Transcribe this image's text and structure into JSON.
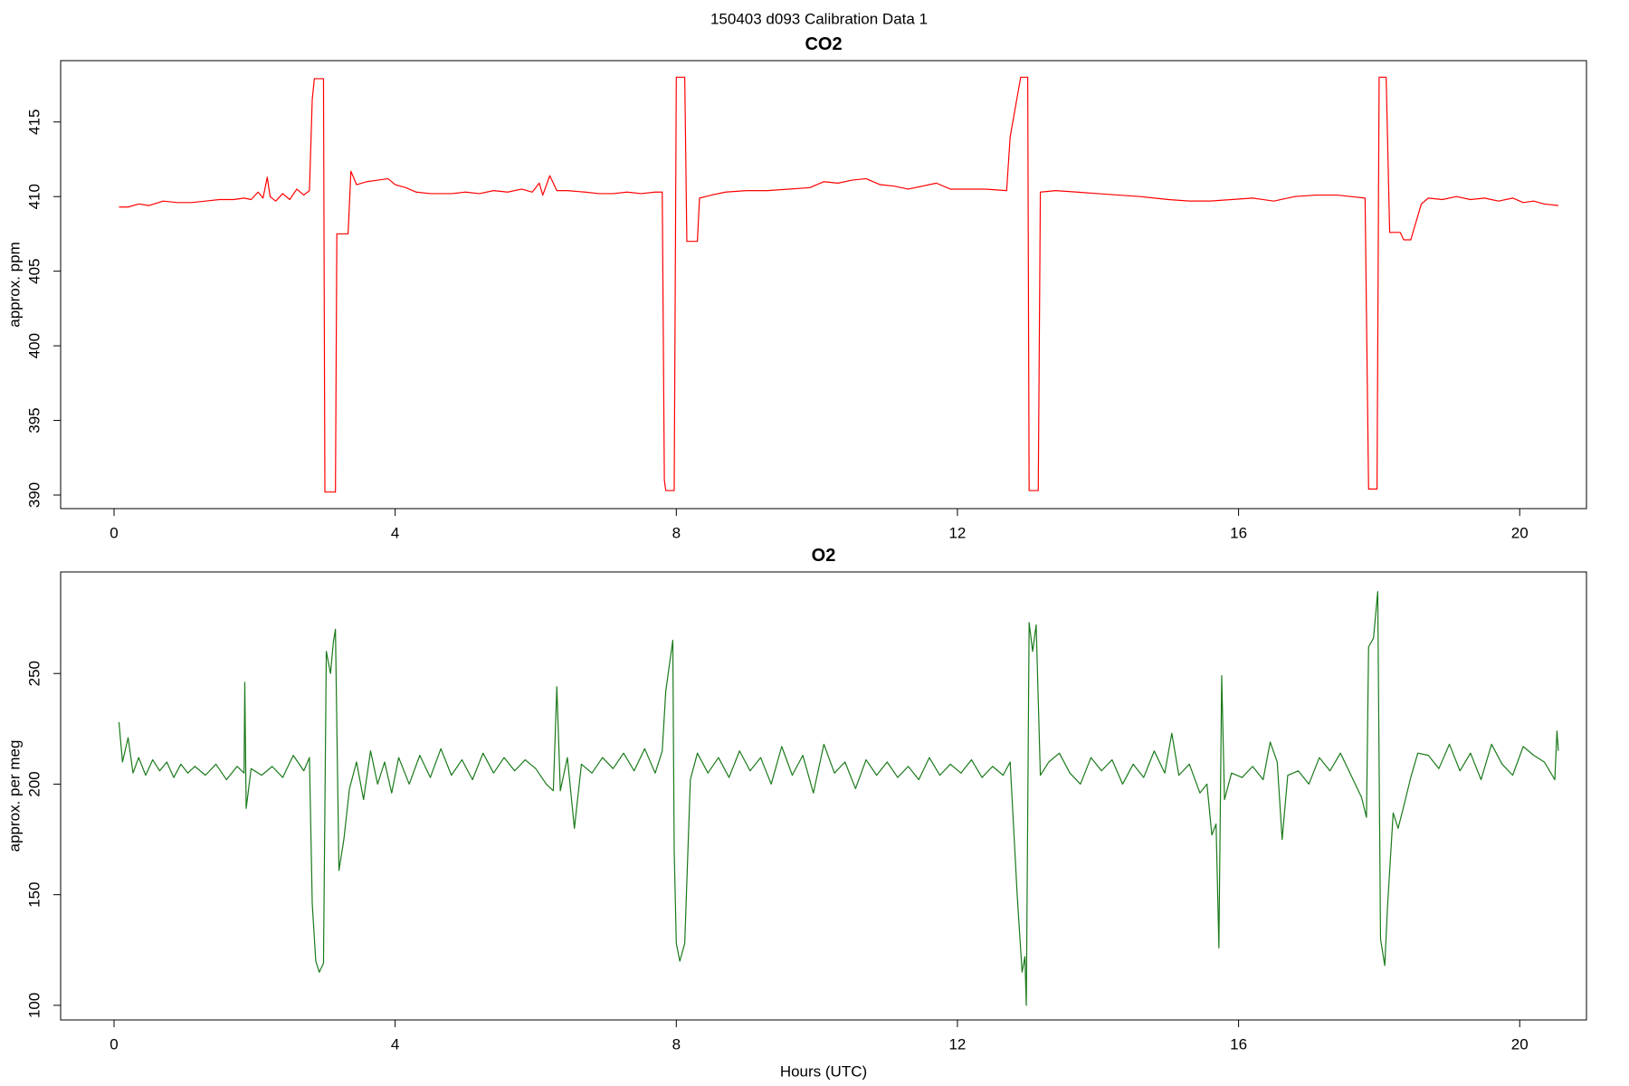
{
  "title": "150403   d093   Calibration Data 1",
  "chart_data": [
    {
      "type": "line",
      "title": "CO2",
      "ylabel": "approx. ppm",
      "xlim": [
        -0.76,
        20.95
      ],
      "xticks": [
        0,
        4,
        8,
        12,
        16,
        20
      ],
      "ylim": [
        389.09,
        419.11
      ],
      "yticks": [
        390,
        395,
        400,
        405,
        410,
        415
      ],
      "color": "#ff0000",
      "x": [
        0.07,
        0.2,
        0.35,
        0.5,
        0.7,
        0.9,
        1.1,
        1.3,
        1.5,
        1.7,
        1.85,
        1.95,
        2.05,
        2.12,
        2.18,
        2.22,
        2.3,
        2.4,
        2.5,
        2.6,
        2.7,
        2.78,
        2.82,
        2.85,
        2.98,
        3.0,
        3.15,
        3.17,
        3.33,
        3.37,
        3.45,
        3.6,
        3.75,
        3.9,
        4.0,
        4.15,
        4.3,
        4.5,
        4.8,
        5.0,
        5.2,
        5.4,
        5.6,
        5.8,
        5.95,
        6.05,
        6.1,
        6.2,
        6.3,
        6.45,
        6.7,
        6.9,
        7.1,
        7.3,
        7.5,
        7.7,
        7.8,
        7.83,
        7.85,
        7.97,
        8.0,
        8.12,
        8.15,
        8.3,
        8.33,
        8.5,
        8.7,
        9.0,
        9.3,
        9.6,
        9.9,
        10.1,
        10.3,
        10.5,
        10.7,
        10.9,
        11.1,
        11.3,
        11.5,
        11.7,
        11.9,
        12.1,
        12.4,
        12.7,
        12.75,
        12.9,
        13.0,
        13.02,
        13.15,
        13.18,
        13.4,
        13.7,
        14.0,
        14.3,
        14.6,
        15.0,
        15.3,
        15.6,
        15.9,
        16.2,
        16.5,
        16.8,
        17.1,
        17.4,
        17.6,
        17.8,
        17.85,
        17.97,
        18.0,
        18.1,
        18.15,
        18.3,
        18.35,
        18.45,
        18.6,
        18.7,
        18.9,
        19.1,
        19.3,
        19.5,
        19.7,
        19.9,
        20.05,
        20.2,
        20.35,
        20.55
      ],
      "values": [
        409.3,
        409.3,
        409.5,
        409.4,
        409.7,
        409.6,
        409.6,
        409.7,
        409.8,
        409.8,
        409.9,
        409.8,
        410.3,
        409.9,
        411.3,
        410.0,
        409.7,
        410.2,
        409.8,
        410.5,
        410.1,
        410.4,
        416.5,
        417.9,
        417.9,
        390.2,
        390.2,
        407.5,
        407.5,
        411.7,
        410.8,
        411.0,
        411.1,
        411.2,
        410.8,
        410.6,
        410.3,
        410.2,
        410.2,
        410.3,
        410.2,
        410.4,
        410.3,
        410.5,
        410.3,
        410.9,
        410.1,
        411.4,
        410.4,
        410.4,
        410.3,
        410.2,
        410.2,
        410.3,
        410.2,
        410.3,
        410.3,
        391,
        390.3,
        390.3,
        418.0,
        418.0,
        407.0,
        407.0,
        409.9,
        410.1,
        410.3,
        410.4,
        410.4,
        410.5,
        410.6,
        411.0,
        410.9,
        411.1,
        411.2,
        410.8,
        410.7,
        410.5,
        410.7,
        410.9,
        410.5,
        410.5,
        410.5,
        410.4,
        414,
        418.0,
        418.0,
        390.3,
        390.3,
        410.3,
        410.4,
        410.3,
        410.2,
        410.1,
        410.0,
        409.8,
        409.7,
        409.7,
        409.8,
        409.9,
        409.7,
        410.0,
        410.1,
        410.1,
        410.0,
        409.9,
        390.4,
        390.4,
        418.0,
        418.0,
        407.6,
        407.6,
        407.1,
        407.1,
        409.5,
        409.9,
        409.8,
        410.0,
        409.8,
        409.9,
        409.7,
        409.9,
        409.6,
        409.7,
        409.5,
        409.4
      ]
    },
    {
      "type": "line",
      "title": "O2",
      "ylabel": "approx. per meg",
      "xlabel": "Hours (UTC)",
      "xlim": [
        -0.76,
        20.95
      ],
      "xticks": [
        0,
        4,
        8,
        12,
        16,
        20
      ],
      "ylim": [
        93.4,
        295.9
      ],
      "yticks": [
        100,
        150,
        200,
        250
      ],
      "color": "#1a7a1a",
      "x": [
        0.07,
        0.12,
        0.2,
        0.27,
        0.35,
        0.45,
        0.55,
        0.65,
        0.75,
        0.85,
        0.95,
        1.05,
        1.15,
        1.3,
        1.45,
        1.6,
        1.75,
        1.85,
        1.86,
        1.88,
        1.95,
        2.1,
        2.25,
        2.4,
        2.55,
        2.7,
        2.78,
        2.82,
        2.87,
        2.92,
        2.98,
        3.02,
        3.08,
        3.12,
        3.15,
        3.2,
        3.27,
        3.35,
        3.45,
        3.55,
        3.65,
        3.75,
        3.85,
        3.95,
        4.05,
        4.2,
        4.35,
        4.5,
        4.65,
        4.8,
        4.95,
        5.1,
        5.25,
        5.4,
        5.55,
        5.7,
        5.85,
        6.0,
        6.15,
        6.25,
        6.3,
        6.35,
        6.45,
        6.55,
        6.65,
        6.8,
        6.95,
        7.1,
        7.25,
        7.4,
        7.55,
        7.7,
        7.8,
        7.85,
        7.95,
        7.97,
        8.0,
        8.05,
        8.12,
        8.2,
        8.3,
        8.45,
        8.6,
        8.75,
        8.9,
        9.05,
        9.2,
        9.35,
        9.5,
        9.65,
        9.8,
        9.95,
        10.1,
        10.25,
        10.4,
        10.55,
        10.7,
        10.85,
        11.0,
        11.15,
        11.3,
        11.45,
        11.6,
        11.75,
        11.9,
        12.05,
        12.2,
        12.35,
        12.5,
        12.65,
        12.75,
        12.85,
        12.92,
        12.96,
        12.98,
        13.02,
        13.07,
        13.12,
        13.18,
        13.3,
        13.45,
        13.6,
        13.75,
        13.9,
        14.05,
        14.2,
        14.35,
        14.5,
        14.65,
        14.8,
        14.95,
        15.05,
        15.15,
        15.3,
        15.45,
        15.55,
        15.62,
        15.68,
        15.72,
        15.76,
        15.8,
        15.9,
        16.05,
        16.2,
        16.35,
        16.45,
        16.55,
        16.62,
        16.7,
        16.85,
        17.0,
        17.15,
        17.3,
        17.45,
        17.6,
        17.75,
        17.82,
        17.85,
        17.92,
        17.98,
        18.02,
        18.08,
        18.12,
        18.2,
        18.27,
        18.35,
        18.45,
        18.55,
        18.7,
        18.85,
        19.0,
        19.15,
        19.3,
        19.45,
        19.6,
        19.75,
        19.9,
        20.05,
        20.2,
        20.35,
        20.5,
        20.53,
        20.55
      ],
      "values": [
        228,
        210,
        221,
        205,
        212,
        204,
        211,
        206,
        210,
        203,
        209,
        205,
        208,
        204,
        209,
        202,
        208,
        205,
        246,
        189,
        207,
        204,
        208,
        203,
        213,
        206,
        212,
        146,
        120,
        115,
        119,
        260,
        250,
        264,
        270,
        161,
        175,
        198,
        210,
        193,
        215,
        200,
        210,
        196,
        212,
        200,
        213,
        203,
        216,
        204,
        211,
        202,
        214,
        205,
        212,
        206,
        211,
        207,
        200,
        197,
        244,
        197,
        212,
        180,
        209,
        205,
        212,
        207,
        214,
        206,
        216,
        205,
        215,
        242,
        265,
        170,
        128,
        120,
        128,
        202,
        214,
        205,
        212,
        203,
        215,
        206,
        212,
        200,
        217,
        204,
        213,
        196,
        218,
        205,
        210,
        198,
        211,
        204,
        210,
        203,
        208,
        202,
        212,
        204,
        209,
        205,
        211,
        203,
        208,
        204,
        210,
        150,
        115,
        122,
        100,
        273,
        260,
        272,
        204,
        210,
        214,
        205,
        200,
        212,
        206,
        211,
        200,
        209,
        203,
        215,
        205,
        223,
        204,
        209,
        196,
        200,
        177,
        182,
        126,
        249,
        193,
        205,
        203,
        208,
        202,
        219,
        210,
        175,
        204,
        206,
        200,
        212,
        206,
        214,
        204,
        194,
        185,
        262,
        266,
        287,
        130,
        118,
        145,
        187,
        180,
        190,
        203,
        214,
        213,
        207,
        218,
        206,
        214,
        202,
        218,
        209,
        204,
        217,
        213,
        210,
        202,
        224,
        215
      ]
    }
  ]
}
